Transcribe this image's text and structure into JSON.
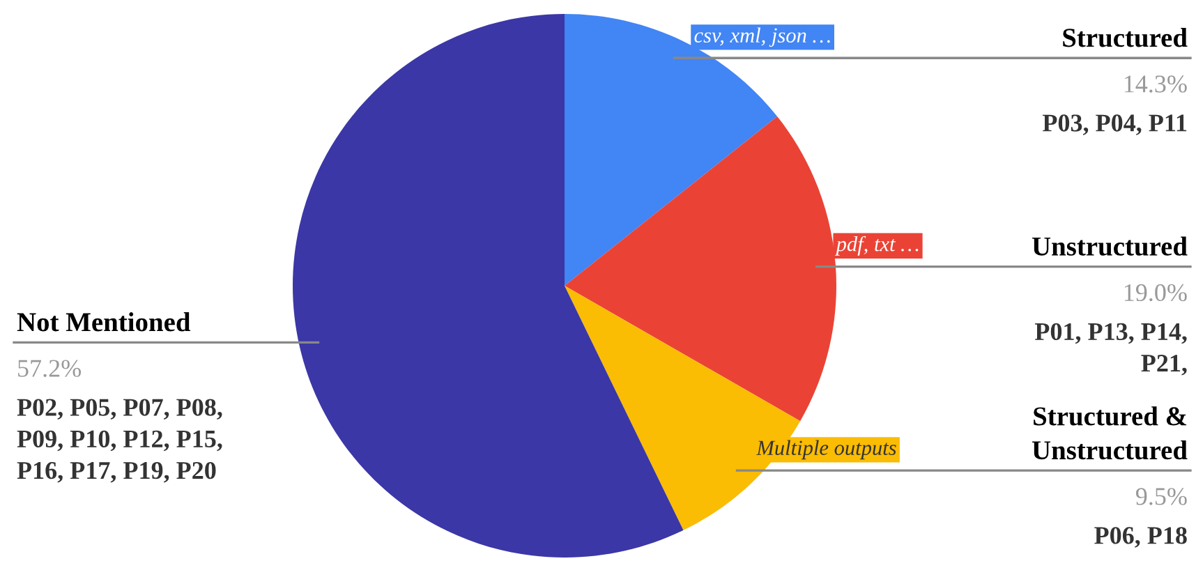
{
  "chart_data": {
    "type": "pie",
    "categories": [
      "Structured",
      "Unstructured",
      "Structured &\nUnstructured",
      "Not Mentioned"
    ],
    "values": [
      14.3,
      19.0,
      9.5,
      57.2
    ],
    "colors": [
      "#4285f4",
      "#ea4335",
      "#fbbc04",
      "#3b37a6"
    ],
    "value_labels": [
      "14.3%",
      "19.0%",
      "9.5%",
      "57.2%"
    ],
    "annotations": [
      "csv, xml, json …",
      "pdf, txt …",
      "Multiple outputs",
      "P03, P04, P11",
      "P01, P13, P14,\nP21,",
      "P06, P18",
      "P02, P05, P07, P08,\nP09, P10, P12, P15,\nP16, P17, P19, P20"
    ],
    "legend": false
  }
}
